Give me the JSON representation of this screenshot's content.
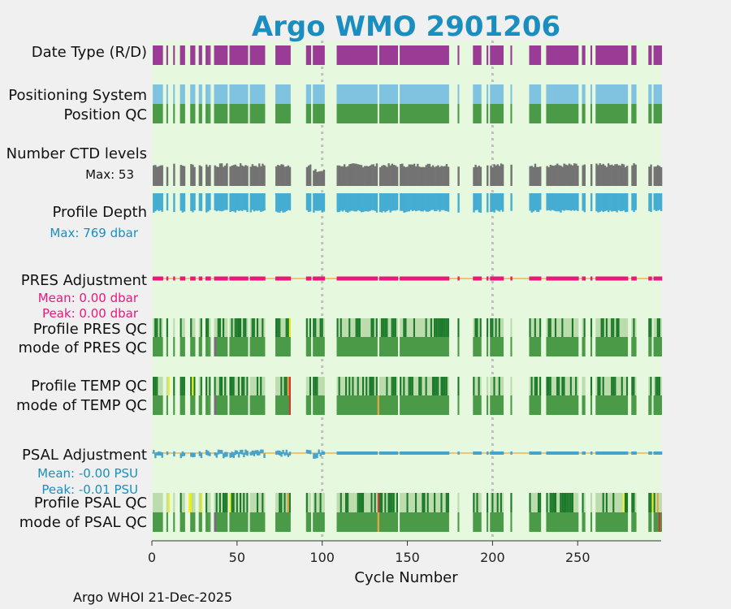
{
  "colors": {
    "background": "#f0f0f0",
    "plot_bg": "#e6f8dd",
    "title": "#1a8fbf",
    "date_type": "#9a3c96",
    "positioning": "#7fc3e0",
    "qc_good": "#4a9a48",
    "qc_dark": "#1b7a2a",
    "qc_light": "#bcdcae",
    "qc_yellow": "#f0f022",
    "qc_orange": "#e8a23c",
    "qc_red": "#d83434",
    "qc_purple": "#8c5a96",
    "ctd": "#737373",
    "depth": "#45acd2",
    "pres_adj": "#e8187c",
    "psal_adj": "#45a3cc",
    "zero_line": "#f4b34a",
    "vgrid": "#c0c0c0"
  },
  "chart_data": {
    "type": "status-timeline",
    "title": "Argo WMO 2901206",
    "xlabel": "Cycle Number",
    "xlim": [
      0,
      299
    ],
    "xticks": [
      0,
      50,
      100,
      150,
      200,
      250
    ],
    "vertical_markers": [
      100,
      200
    ],
    "cycle_segments": [
      [
        1,
        7
      ],
      [
        9,
        10
      ],
      [
        13,
        14
      ],
      [
        17,
        20
      ],
      [
        23,
        26
      ],
      [
        28,
        30
      ],
      [
        32,
        34
      ],
      [
        34,
        35
      ],
      [
        37,
        45
      ],
      [
        46,
        57
      ],
      [
        58,
        67
      ],
      [
        73,
        82
      ],
      [
        91,
        94
      ],
      [
        95,
        102
      ],
      [
        109,
        133
      ],
      [
        134,
        145
      ],
      [
        146,
        175
      ],
      [
        180,
        181
      ],
      [
        189,
        194
      ],
      [
        197,
        198
      ],
      [
        199,
        207
      ],
      [
        211,
        212
      ],
      [
        222,
        229
      ],
      [
        232,
        251
      ],
      [
        253,
        255
      ],
      [
        258,
        259
      ],
      [
        261,
        280
      ],
      [
        282,
        285
      ],
      [
        292,
        294
      ],
      [
        295,
        300
      ]
    ],
    "rows": [
      {
        "key": "date_type",
        "label": "Date Type (R/D)"
      },
      {
        "key": "positioning",
        "label": "Positioning System"
      },
      {
        "key": "position_qc",
        "label": "Position QC"
      },
      {
        "key": "ctd_levels",
        "label": "Number CTD levels",
        "max_label": "Max: 53",
        "max": 53
      },
      {
        "key": "profile_depth",
        "label": "Profile Depth",
        "max_label": "Max:  769 dbar",
        "max": 769
      },
      {
        "key": "pres_adj",
        "label": "PRES Adjustment",
        "mean_label": "Mean: 0.00 dbar",
        "peak_label": "Peak: 0.00 dbar"
      },
      {
        "key": "pres_profile_qc",
        "label": "Profile PRES QC"
      },
      {
        "key": "pres_mode_qc",
        "label": "mode of PRES QC"
      },
      {
        "key": "temp_profile_qc",
        "label": "Profile TEMP QC"
      },
      {
        "key": "temp_mode_qc",
        "label": "mode of TEMP QC"
      },
      {
        "key": "psal_adj",
        "label": "PSAL Adjustment",
        "mean_label": "Mean: -0.00 PSU",
        "peak_label": "Peak: -0.01 PSU"
      },
      {
        "key": "psal_profile_qc",
        "label": "Profile PSAL QC"
      },
      {
        "key": "psal_mode_qc",
        "label": "mode of PSAL QC"
      }
    ],
    "qc_markers": {
      "pres_profile_qc": [
        {
          "cycle": 81,
          "color": "yellow"
        }
      ],
      "pres_mode_qc": [
        {
          "cycle": 37,
          "color": "purple"
        }
      ],
      "temp_profile_qc": [
        {
          "cycle": 10,
          "color": "yellow"
        },
        {
          "cycle": 24,
          "color": "yellow"
        },
        {
          "cycle": 80,
          "color": "orange"
        },
        {
          "cycle": 81,
          "color": "red"
        }
      ],
      "temp_mode_qc": [
        {
          "cycle": 37,
          "color": "purple"
        },
        {
          "cycle": 81,
          "color": "red"
        },
        {
          "cycle": 133,
          "color": "orange"
        }
      ],
      "psal_profile_qc": [
        {
          "cycle": 10,
          "color": "yellow"
        },
        {
          "cycle": 22,
          "color": "yellow"
        },
        {
          "cycle": 23,
          "color": "yellow"
        },
        {
          "cycle": 29,
          "color": "yellow"
        },
        {
          "cycle": 46,
          "color": "yellow"
        },
        {
          "cycle": 80,
          "color": "orange"
        },
        {
          "cycle": 133,
          "color": "red"
        },
        {
          "cycle": 277,
          "color": "yellow"
        },
        {
          "cycle": 294,
          "color": "yellow"
        },
        {
          "cycle": 297,
          "color": "orange"
        }
      ],
      "psal_mode_qc": [
        {
          "cycle": 37,
          "color": "purple"
        },
        {
          "cycle": 133,
          "color": "orange"
        },
        {
          "cycle": 298,
          "color": "red"
        }
      ]
    }
  },
  "footer": "Argo WHOI 21-Dec-2025"
}
